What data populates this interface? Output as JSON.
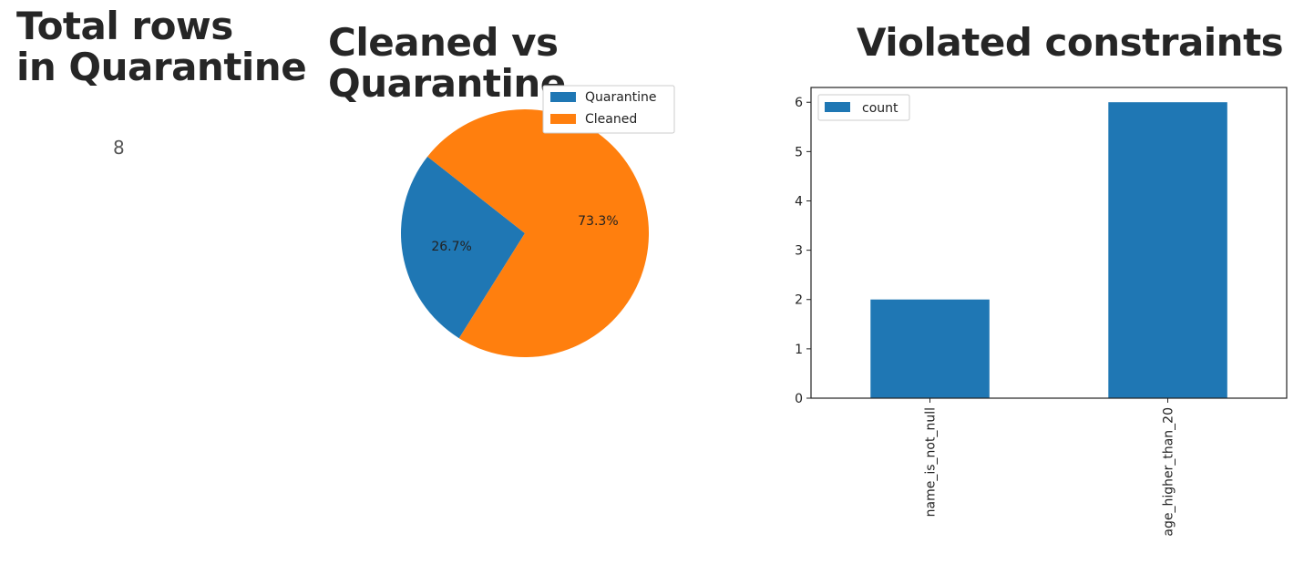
{
  "total_panel": {
    "title": "Total rows\nin Quarantine",
    "value": "8"
  },
  "chart_data": [
    {
      "type": "pie",
      "title": "Cleaned vs Quarantine",
      "labels": [
        "Quarantine",
        "Cleaned"
      ],
      "values": [
        26.7,
        73.3
      ],
      "value_labels": [
        "26.7%",
        "73.3%"
      ],
      "colors": [
        "#1f77b4",
        "#ff7f0e"
      ],
      "legend": {
        "entries": [
          "Quarantine",
          "Cleaned"
        ],
        "placement": "top-right"
      }
    },
    {
      "type": "bar",
      "title": "Violated constraints",
      "categories": [
        "name_is_not_null",
        "age_higher_than_20"
      ],
      "series": [
        {
          "name": "count",
          "values": [
            2,
            6
          ]
        }
      ],
      "color": "#1f77b4",
      "ylim": [
        0,
        6.3
      ],
      "yticks": [
        "0",
        "1",
        "2",
        "3",
        "4",
        "5",
        "6"
      ],
      "xlabel": "",
      "ylabel": "",
      "grid": false,
      "legend": {
        "entries": [
          "count"
        ],
        "placement": "top-left"
      }
    }
  ]
}
